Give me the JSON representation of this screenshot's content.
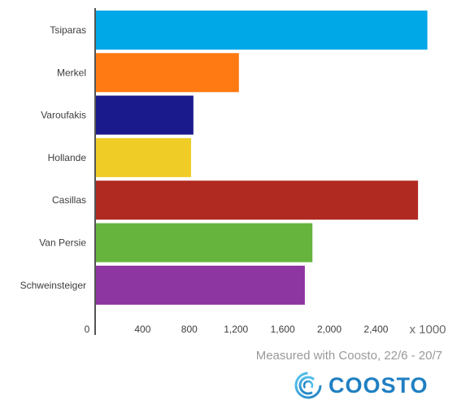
{
  "chart_data": {
    "type": "bar",
    "orientation": "horizontal",
    "categories": [
      "Tsiparas",
      "Merkel",
      "Varoufakis",
      "Hollande",
      "Casillas",
      "Van Persie",
      "Schweinsteiger"
    ],
    "values": [
      2840,
      1225,
      835,
      815,
      2760,
      1855,
      1790
    ],
    "colors": [
      "#00a8e8",
      "#ff7a12",
      "#1b1a8c",
      "#efcd26",
      "#b12a21",
      "#66b43e",
      "#8d35a0"
    ],
    "xlim": [
      0,
      2850
    ],
    "xticks": [
      0,
      400,
      800,
      1200,
      1600,
      2000,
      2400
    ],
    "xtick_labels": [
      "0",
      "400",
      "800",
      "1,200",
      "1,600",
      "2,000",
      "2,400"
    ],
    "x_unit": "x 1000",
    "grid": false
  },
  "caption": "Measured with Coosto, 22/6 - 20/7",
  "brand": {
    "name": "COOSTO",
    "color": "#1f7fc2",
    "icon": "coosto-logo-icon"
  }
}
